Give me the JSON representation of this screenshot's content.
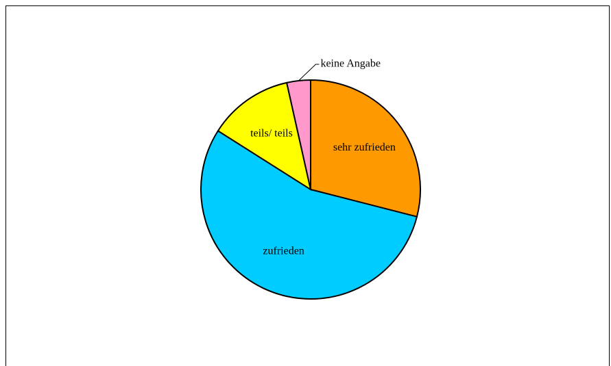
{
  "chart_data": {
    "type": "pie",
    "categories": [
      "sehr zufrieden",
      "zufrieden",
      "teils/ teils",
      "keine Angabe"
    ],
    "values": [
      29,
      55,
      12.5,
      3.5
    ],
    "colors": [
      "#ff9900",
      "#00ccff",
      "#ffff00",
      "#ff99cc"
    ]
  }
}
